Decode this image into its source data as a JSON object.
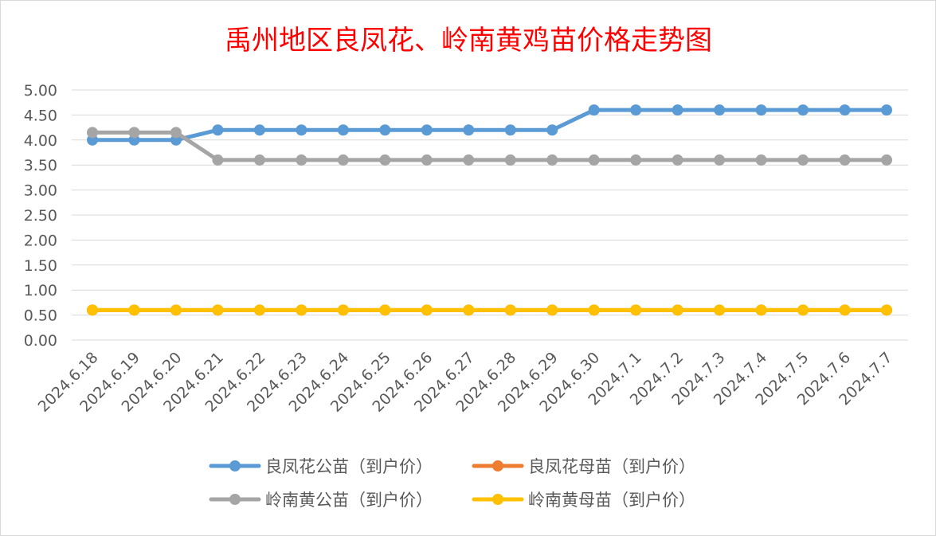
{
  "chart_data": {
    "type": "line",
    "title": "禹州地区良凤花、岭南黄鸡苗价格走势图",
    "xlabel": "",
    "ylabel": "",
    "ylim": [
      0,
      5
    ],
    "yticks": [
      "0.00",
      "0.50",
      "1.00",
      "1.50",
      "2.00",
      "2.50",
      "3.00",
      "3.50",
      "4.00",
      "4.50",
      "5.00"
    ],
    "grid": true,
    "legend_position": "bottom",
    "categories": [
      "2024.6.18",
      "2024.6.19",
      "2024.6.20",
      "2024.6.21",
      "2024.6.22",
      "2024.6.23",
      "2024.6.24",
      "2024.6.25",
      "2024.6.26",
      "2024.6.27",
      "2024.6.28",
      "2024.6.29",
      "2024.6.30",
      "2024.7.1",
      "2024.7.2",
      "2024.7.3",
      "2024.7.4",
      "2024.7.5",
      "2024.7.6",
      "2024.7.7"
    ],
    "series": [
      {
        "name": "良凤花公苗（到户价）",
        "color": "#5b9bd5",
        "values": [
          4.0,
          4.0,
          4.0,
          4.2,
          4.2,
          4.2,
          4.2,
          4.2,
          4.2,
          4.2,
          4.2,
          4.2,
          4.6,
          4.6,
          4.6,
          4.6,
          4.6,
          4.6,
          4.6,
          4.6
        ]
      },
      {
        "name": "良凤花母苗（到户价）",
        "color": "#ed7d31",
        "values": [
          0.6,
          0.6,
          0.6,
          0.6,
          0.6,
          0.6,
          0.6,
          0.6,
          0.6,
          0.6,
          0.6,
          0.6,
          0.6,
          0.6,
          0.6,
          0.6,
          0.6,
          0.6,
          0.6,
          0.6
        ]
      },
      {
        "name": "岭南黄公苗（到户价）",
        "color": "#a5a5a5",
        "values": [
          4.15,
          4.15,
          4.15,
          3.6,
          3.6,
          3.6,
          3.6,
          3.6,
          3.6,
          3.6,
          3.6,
          3.6,
          3.6,
          3.6,
          3.6,
          3.6,
          3.6,
          3.6,
          3.6,
          3.6
        ]
      },
      {
        "name": "岭南黄母苗（到户价）",
        "color": "#ffc000",
        "values": [
          0.6,
          0.6,
          0.6,
          0.6,
          0.6,
          0.6,
          0.6,
          0.6,
          0.6,
          0.6,
          0.6,
          0.6,
          0.6,
          0.6,
          0.6,
          0.6,
          0.6,
          0.6,
          0.6,
          0.6
        ]
      }
    ]
  }
}
